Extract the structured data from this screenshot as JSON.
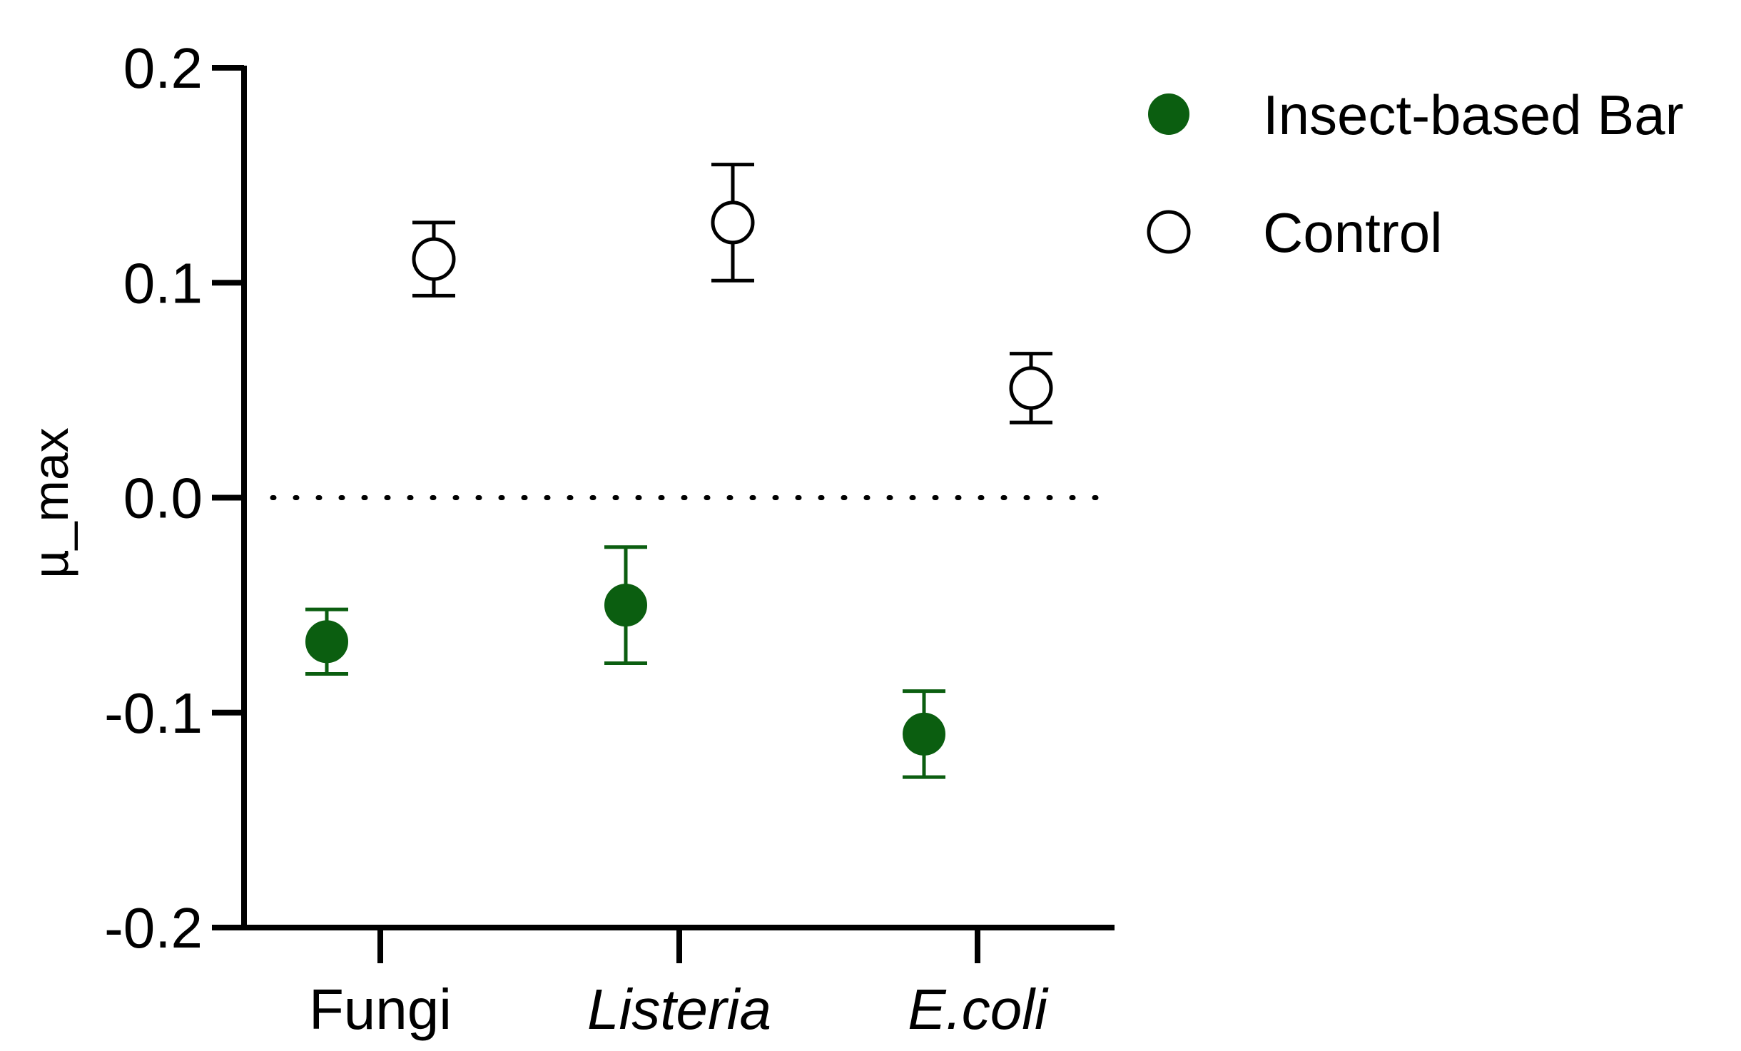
{
  "chart_data": {
    "type": "scatter",
    "ylabel": "µ_max",
    "ylim": [
      -0.2,
      0.2
    ],
    "yticks": [
      0.2,
      0.1,
      0.0,
      -0.1,
      -0.2
    ],
    "ytick_labels": [
      "0.2",
      "0.1",
      "0.0",
      "-0.1",
      "-0.2"
    ],
    "categories": [
      "Fungi",
      "Listeria",
      "E.coli"
    ],
    "category_italic": [
      false,
      true,
      true
    ],
    "reference_line": {
      "y": 0.0,
      "style": "dotted"
    },
    "legend_position": "top-right",
    "grid": false,
    "series": [
      {
        "name": "Insect-based Bar",
        "marker": "filled-circle",
        "color": "#0b5e10",
        "values": [
          -0.067,
          -0.05,
          -0.11
        ],
        "errors": [
          0.015,
          0.027,
          0.02
        ]
      },
      {
        "name": "Control",
        "marker": "open-circle",
        "color": "#000000",
        "values": [
          0.111,
          0.128,
          0.051
        ],
        "errors": [
          0.017,
          0.027,
          0.016
        ]
      }
    ]
  }
}
